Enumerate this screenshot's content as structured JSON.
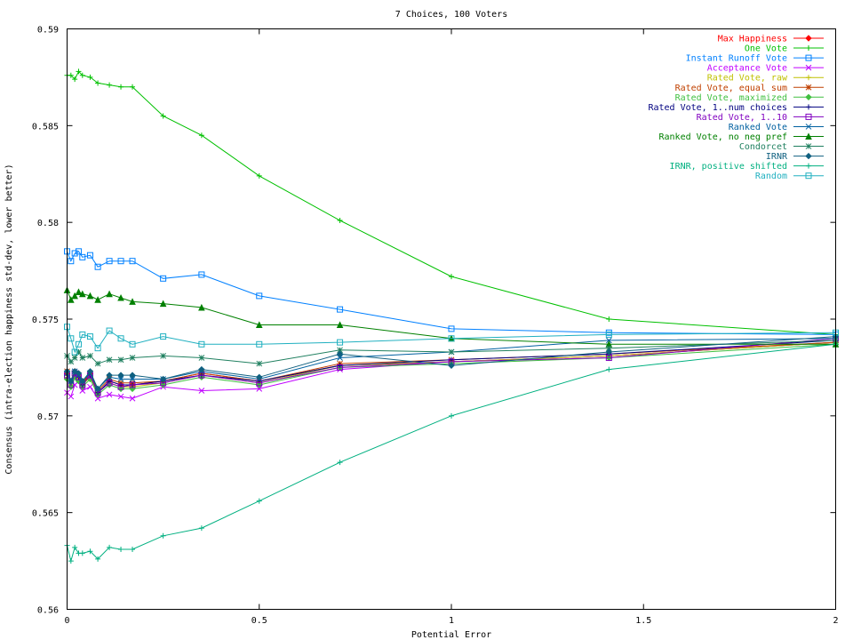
{
  "chart_data": {
    "type": "line",
    "title": "7 Choices, 100 Voters",
    "xlabel": "Potential Error",
    "ylabel": "Consensus (intra-election happiness std-dev, lower better)",
    "xlim": [
      0,
      2
    ],
    "ylim": [
      0.56,
      0.59
    ],
    "x_ticks": [
      "0",
      "0.5",
      "1",
      "1.5",
      "2"
    ],
    "y_ticks": [
      "0.56",
      "0.565",
      "0.57",
      "0.575",
      "0.58",
      "0.585",
      "0.59"
    ],
    "grid": false,
    "legend_position": "top-right",
    "x": [
      0,
      0.01,
      0.02,
      0.03,
      0.04,
      0.06,
      0.08,
      0.11,
      0.14,
      0.17,
      0.25,
      0.35,
      0.5,
      0.71,
      1.0,
      1.41,
      2.0
    ],
    "series": [
      {
        "name": "Max Happiness",
        "color": "#ff0000",
        "marker": "diamond",
        "values": [
          0.5722,
          0.5718,
          0.5723,
          0.572,
          0.5716,
          0.5722,
          0.5712,
          0.5718,
          0.5716,
          0.5716,
          0.5718,
          0.5722,
          0.5718,
          0.5726,
          0.5728,
          0.5731,
          0.5738
        ]
      },
      {
        "name": "One Vote",
        "color": "#00c000",
        "marker": "plus",
        "values": [
          0.5876,
          0.5876,
          0.5874,
          0.5878,
          0.5876,
          0.5875,
          0.5872,
          0.5871,
          0.587,
          0.587,
          0.5855,
          0.5845,
          0.5824,
          0.5801,
          0.5772,
          0.575,
          0.5742
        ]
      },
      {
        "name": "Instant Runoff Vote",
        "color": "#0080ff",
        "marker": "square",
        "values": [
          0.5785,
          0.578,
          0.5784,
          0.5785,
          0.5782,
          0.5783,
          0.5777,
          0.578,
          0.578,
          0.578,
          0.5771,
          0.5773,
          0.5762,
          0.5755,
          0.5745,
          0.5743,
          0.5742
        ]
      },
      {
        "name": "Acceptance Vote",
        "color": "#c000ff",
        "marker": "x",
        "values": [
          0.5712,
          0.571,
          0.5716,
          0.5718,
          0.5713,
          0.5715,
          0.5709,
          0.5711,
          0.571,
          0.5709,
          0.5715,
          0.5713,
          0.5714,
          0.5724,
          0.5728,
          0.5731,
          0.5738
        ]
      },
      {
        "name": "Rated Vote, raw",
        "color": "#c0c000",
        "marker": "plus",
        "values": [
          0.572,
          0.5716,
          0.5721,
          0.5719,
          0.5716,
          0.572,
          0.5712,
          0.5717,
          0.5715,
          0.5715,
          0.5717,
          0.5721,
          0.5717,
          0.5726,
          0.5728,
          0.5731,
          0.5738
        ]
      },
      {
        "name": "Rated Vote, equal sum",
        "color": "#c04000",
        "marker": "star",
        "values": [
          0.5723,
          0.5718,
          0.5722,
          0.5721,
          0.5717,
          0.5722,
          0.5713,
          0.5719,
          0.5717,
          0.5717,
          0.5718,
          0.5722,
          0.5718,
          0.5727,
          0.5729,
          0.5732,
          0.5738
        ]
      },
      {
        "name": "Rated Vote, maximized",
        "color": "#40c040",
        "marker": "diamond",
        "values": [
          0.5719,
          0.5715,
          0.572,
          0.5718,
          0.5715,
          0.5719,
          0.5711,
          0.5716,
          0.5714,
          0.5714,
          0.5716,
          0.572,
          0.5716,
          0.5725,
          0.5727,
          0.573,
          0.5737
        ]
      },
      {
        "name": "Rated Vote, 1..num choices",
        "color": "#000080",
        "marker": "plus",
        "values": [
          0.5721,
          0.5717,
          0.5722,
          0.572,
          0.5716,
          0.5721,
          0.5712,
          0.5718,
          0.5716,
          0.5716,
          0.5718,
          0.5721,
          0.5718,
          0.5726,
          0.5729,
          0.5732,
          0.5739
        ]
      },
      {
        "name": "Rated Vote, 1..10",
        "color": "#8000c0",
        "marker": "square",
        "values": [
          0.5721,
          0.5716,
          0.5722,
          0.572,
          0.5716,
          0.5721,
          0.5712,
          0.5717,
          0.5715,
          0.5716,
          0.5717,
          0.5721,
          0.5717,
          0.5725,
          0.5728,
          0.573,
          0.574
        ]
      },
      {
        "name": "Ranked Vote",
        "color": "#0060a0",
        "marker": "x",
        "values": [
          0.5722,
          0.5718,
          0.5723,
          0.5721,
          0.5718,
          0.5722,
          0.5714,
          0.572,
          0.5719,
          0.5719,
          0.5719,
          0.5723,
          0.5719,
          0.573,
          0.5733,
          0.5739,
          0.574
        ]
      },
      {
        "name": "Ranked Vote, no neg pref",
        "color": "#008000",
        "marker": "triangle",
        "values": [
          0.5765,
          0.576,
          0.5762,
          0.5764,
          0.5763,
          0.5762,
          0.576,
          0.5763,
          0.5761,
          0.5759,
          0.5758,
          0.5756,
          0.5747,
          0.5747,
          0.574,
          0.5737,
          0.5737
        ]
      },
      {
        "name": "Condorcet",
        "color": "#208060",
        "marker": "star",
        "values": [
          0.5731,
          0.5728,
          0.573,
          0.5733,
          0.573,
          0.5731,
          0.5727,
          0.5729,
          0.5729,
          0.573,
          0.5731,
          0.573,
          0.5727,
          0.5734,
          0.5733,
          0.5735,
          0.5739
        ]
      },
      {
        "name": "IRNR",
        "color": "#106080",
        "marker": "diamond",
        "values": [
          0.5723,
          0.5718,
          0.5723,
          0.5722,
          0.5718,
          0.5723,
          0.5714,
          0.5721,
          0.5721,
          0.5721,
          0.5719,
          0.5724,
          0.572,
          0.5732,
          0.5726,
          0.5733,
          0.5741
        ]
      },
      {
        "name": "IRNR, positive shifted",
        "color": "#00b080",
        "marker": "plus",
        "values": [
          0.5633,
          0.5625,
          0.5632,
          0.5629,
          0.5629,
          0.563,
          0.5626,
          0.5632,
          0.5631,
          0.5631,
          0.5638,
          0.5642,
          0.5656,
          0.5676,
          0.57,
          0.5724,
          0.5737
        ]
      },
      {
        "name": "Random",
        "color": "#20b0c0",
        "marker": "square",
        "values": [
          0.5746,
          0.574,
          0.5733,
          0.5737,
          0.5742,
          0.5741,
          0.5735,
          0.5744,
          0.574,
          0.5737,
          0.5741,
          0.5737,
          0.5737,
          0.5738,
          0.574,
          0.5742,
          0.5743
        ]
      }
    ]
  }
}
